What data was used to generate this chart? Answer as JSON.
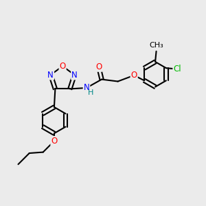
{
  "bg_color": "#ebebeb",
  "bond_color": "#000000",
  "bond_width": 1.5,
  "atom_colors": {
    "C": "#000000",
    "N": "#0000ff",
    "O": "#ff0000",
    "Cl": "#00bb00",
    "H": "#008888"
  },
  "font_size": 8.5
}
